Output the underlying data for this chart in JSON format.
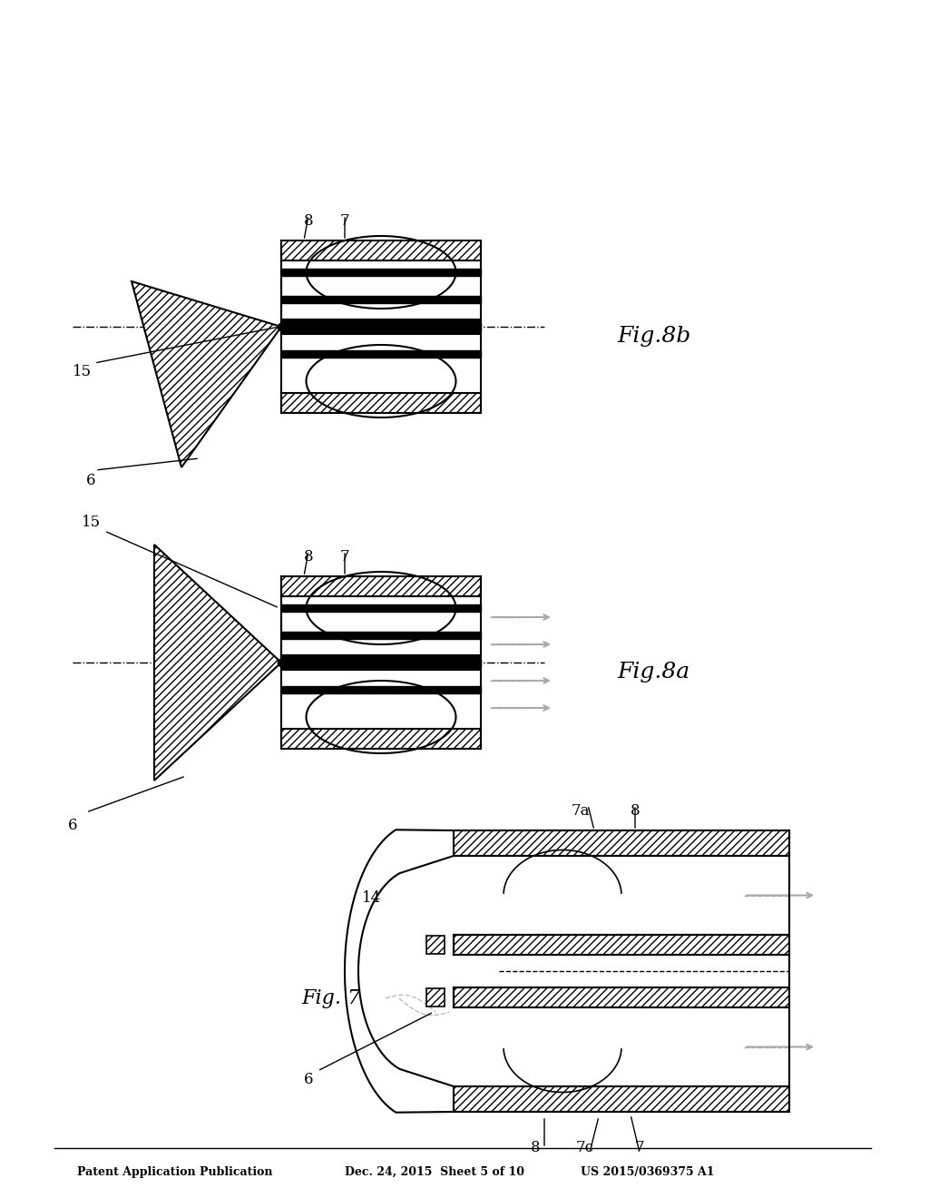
{
  "bg_color": "#ffffff",
  "header_left": "Patent Application Publication",
  "header_mid": "Dec. 24, 2015  Sheet 5 of 10",
  "header_right": "US 2015/0369375 A1",
  "fig7_label": "Fig. 7",
  "fig8a_label": "Fig.8a",
  "fig8b_label": "Fig.8b",
  "line_color": "#000000",
  "hatch_color": "#000000",
  "dash_color": "#888888",
  "arrow_color": "#aaaaaa"
}
